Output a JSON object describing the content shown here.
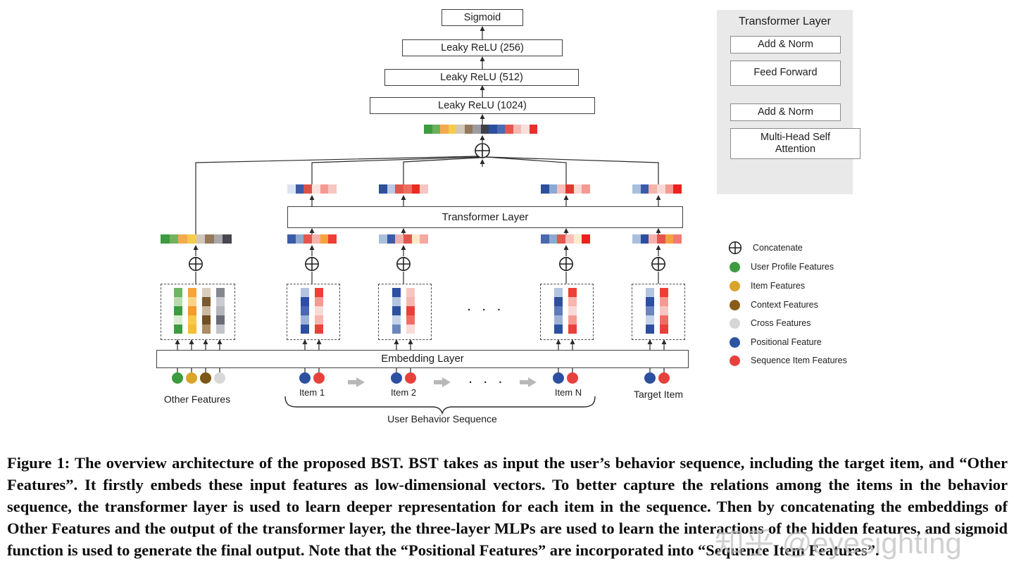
{
  "mlp": {
    "sigmoid": "Sigmoid",
    "fc256": "Leaky ReLU (256)",
    "fc512": "Leaky ReLU (512)",
    "fc1024": "Leaky ReLU (1024)"
  },
  "transformer_box_label": "Transformer Layer",
  "embedding_layer_label": "Embedding  Layer",
  "labels": {
    "item1": "Item 1",
    "item2": "Item 2",
    "itemN": "Item N",
    "target": "Target Item",
    "other": "Other Features",
    "behavior_sequence": "User Behavior Sequence",
    "ellipsis": "·  ·  ·"
  },
  "detail_panel": {
    "title": "Transformer Layer",
    "boxes": [
      "Add & Norm",
      "Feed Forward",
      "Add & Norm",
      "Multi-Head Self Attention"
    ]
  },
  "legend": {
    "items": [
      {
        "label": "Concatenate",
        "type": "concat"
      },
      {
        "label": "User Profile Features",
        "color": "#3d9b40"
      },
      {
        "label": "Item Features",
        "color": "#d9a32b"
      },
      {
        "label": "Context Features",
        "color": "#8a5c1a"
      },
      {
        "label": "Cross Features",
        "color": "#d6d6d6"
      },
      {
        "label": "Positional Feature",
        "color": "#2b55a0"
      },
      {
        "label": "Sequence Item Features",
        "color": "#e8413c"
      }
    ]
  },
  "strips": {
    "top_concat": [
      "#3d9b40",
      "#68b05c",
      "#f4a94e",
      "#f7cb4d",
      "#cfc8bb",
      "#96795b",
      "#9c9ca0",
      "#3f4048",
      "#2d4f9f",
      "#4a6cb3",
      "#e4564d",
      "#f4b9b3",
      "#fadfdc",
      "#e8302c"
    ],
    "other_concat": [
      "#3d9b40",
      "#74b25f",
      "#f4a94e",
      "#f7cb4d",
      "#cfc8bb",
      "#96795b",
      "#a9a9ab",
      "#47474f"
    ],
    "inputs": {
      "item1": [
        "#3a5ba8",
        "#8fa8d0",
        "#e4564d",
        "#f4b3ac",
        "#f5a33c",
        "#ee3f35"
      ],
      "item2": [
        "#aabfdc",
        "#3a5ba8",
        "#f0b1ab",
        "#e0564e",
        "#fce9c8",
        "#f6a9a3"
      ],
      "itemN": [
        "#4a68ae",
        "#8fa8d0",
        "#e4564d",
        "#f7c0ba",
        "#fbeccb",
        "#ee1f1f"
      ],
      "target": [
        "#aabfdc",
        "#2d4f9f",
        "#f4b3ac",
        "#e4564d",
        "#f0a33f",
        "#f27a72"
      ]
    },
    "outputs": {
      "item1": [
        "#dde4f1",
        "#3a5ba8",
        "#db5248",
        "#fae3de",
        "#f59a92",
        "#f8c6c0"
      ],
      "item2": [
        "#2d4f9f",
        "#bcc9e2",
        "#e25549",
        "#ef6e64",
        "#ee2a22",
        "#f8c6c0"
      ],
      "itemN": [
        "#2d4f9f",
        "#8fa8d0",
        "#f7c0ba",
        "#e03a30",
        "#fadad6",
        "#f59a92"
      ],
      "target": [
        "#aabfdc",
        "#3a5ba8",
        "#f4b3ac",
        "#fadad6",
        "#f59a92",
        "#ee1f1f"
      ]
    }
  },
  "columns": {
    "other": [
      [
        "#6cb661",
        "#b9dcae",
        "#3d9b40",
        "#d8ecd0",
        "#3d9b40"
      ],
      [
        "#f5a33c",
        "#fbd289",
        "#f29b2e",
        "#f7c94c",
        "#f5bd37"
      ],
      [
        "#d9cdbb",
        "#7a5a2e",
        "#cbb89e",
        "#6f4f24",
        "#a98e63"
      ],
      [
        "#84878f",
        "#c9cbd0",
        "#b3b5bb",
        "#6a6d76",
        "#c2c4c9"
      ]
    ],
    "item1": [
      [
        "#b3c4e0",
        "#2d4f9f",
        "#4a68ae",
        "#9db2d6",
        "#2d4f9f"
      ],
      [
        "#ee3f35",
        "#f59a92",
        "#fadad6",
        "#f7b6af",
        "#e8413c"
      ]
    ],
    "item2": [
      [
        "#2d4f9f",
        "#b3c4e0",
        "#2d4f9f",
        "#c5d2e8",
        "#6c86bd"
      ],
      [
        "#f8c6c0",
        "#f7b6af",
        "#e8413c",
        "#ef6e64",
        "#fadad6"
      ]
    ],
    "itemN": [
      [
        "#b3c4e0",
        "#2d4f9f",
        "#5f7ab8",
        "#9db2d6",
        "#2d4f9f"
      ],
      [
        "#ee3f35",
        "#f7b6af",
        "#fadad6",
        "#f59a92",
        "#e8413c"
      ]
    ],
    "target": [
      [
        "#b3c4e0",
        "#2d4f9f",
        "#6c86bd",
        "#c5d2e8",
        "#2d4f9f"
      ],
      [
        "#ee3f35",
        "#f59a92",
        "#f8c6c0",
        "#ef6e64",
        "#e8413c"
      ]
    ]
  },
  "input_dots": {
    "other": [
      "#3d9b40",
      "#dba52c",
      "#7d5718",
      "#d8d8d8"
    ],
    "item": [
      "#2d4f9f",
      "#e8413c"
    ]
  },
  "colors": {
    "panel_bg": "#e9e9e9",
    "wire": "#2a2a2a",
    "sequence_arrow": "#b8b8b8"
  },
  "caption": "Figure 1: The overview architecture of the proposed BST. BST takes as input the user’s behavior sequence, including the target item, and “Other Features”. It firstly embeds these input features as low-dimensional vectors. To better capture the relations among the items in the behavior sequence, the transformer layer is used to learn deeper representation for each item in the sequence. Then by concatenating the embeddings of Other Features and the output of the transformer layer, the three-layer MLPs are used to learn the interactions of the hidden features, and sigmoid function is used to generate the final output. Note that the “Positional Features” are incorporated into “Sequence Item Features”.",
  "watermark": "知乎 @eyesighting"
}
